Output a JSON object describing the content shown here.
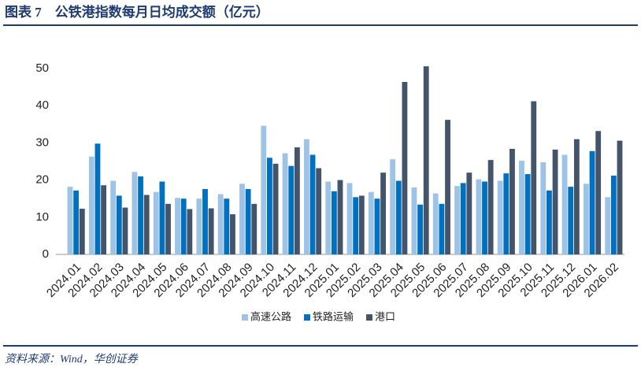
{
  "chart_data": {
    "type": "bar",
    "title": "图表 7　公铁港指数每月日均成交额（亿元）",
    "source": "资料来源：Wind，华创证券",
    "categories": [
      "2024.01",
      "2024.02",
      "2024.03",
      "2024.04",
      "2024.05",
      "2024.06",
      "2024.07",
      "2024.08",
      "2024.09",
      "2024.10",
      "2024.11",
      "2024.12",
      "2025.01",
      "2025.02",
      "2025.03",
      "2025.04",
      "2025.05",
      "2025.06",
      "2025.07",
      "2025.08",
      "2025.09",
      "2025.10",
      "2025.11",
      "2025.12",
      "2026.01",
      "2026.02"
    ],
    "series": [
      {
        "name": "高速公路",
        "color": "#9dc3e6",
        "values": [
          18.2,
          26.3,
          19.8,
          22.2,
          16.8,
          15.2,
          15.0,
          16.2,
          19.0,
          34.6,
          27.2,
          31.0,
          19.6,
          19.2,
          16.8,
          25.6,
          18.0,
          16.4,
          18.4,
          20.2,
          19.8,
          25.2,
          24.8,
          26.8,
          19.0,
          15.4
        ]
      },
      {
        "name": "铁路运输",
        "color": "#0070c0",
        "values": [
          17.2,
          29.8,
          15.8,
          21.0,
          19.6,
          15.0,
          17.6,
          15.0,
          17.6,
          26.0,
          23.8,
          26.8,
          17.0,
          15.4,
          15.0,
          19.8,
          13.4,
          13.6,
          19.2,
          19.6,
          21.8,
          21.6,
          17.2,
          18.2,
          27.8,
          21.2
        ]
      },
      {
        "name": "港口",
        "color": "#44546a",
        "values": [
          12.3,
          18.6,
          12.6,
          16.0,
          13.6,
          12.2,
          12.4,
          10.8,
          13.6,
          24.4,
          28.8,
          23.2,
          20.0,
          15.8,
          22.0,
          46.4,
          50.6,
          36.2,
          22.0,
          25.4,
          28.4,
          41.2,
          28.2,
          31.0,
          33.2,
          30.6
        ]
      }
    ],
    "ylim": [
      0,
      55
    ],
    "yticks": [
      0,
      10,
      20,
      30,
      40,
      50
    ],
    "grid": false,
    "legend": "bottom"
  }
}
